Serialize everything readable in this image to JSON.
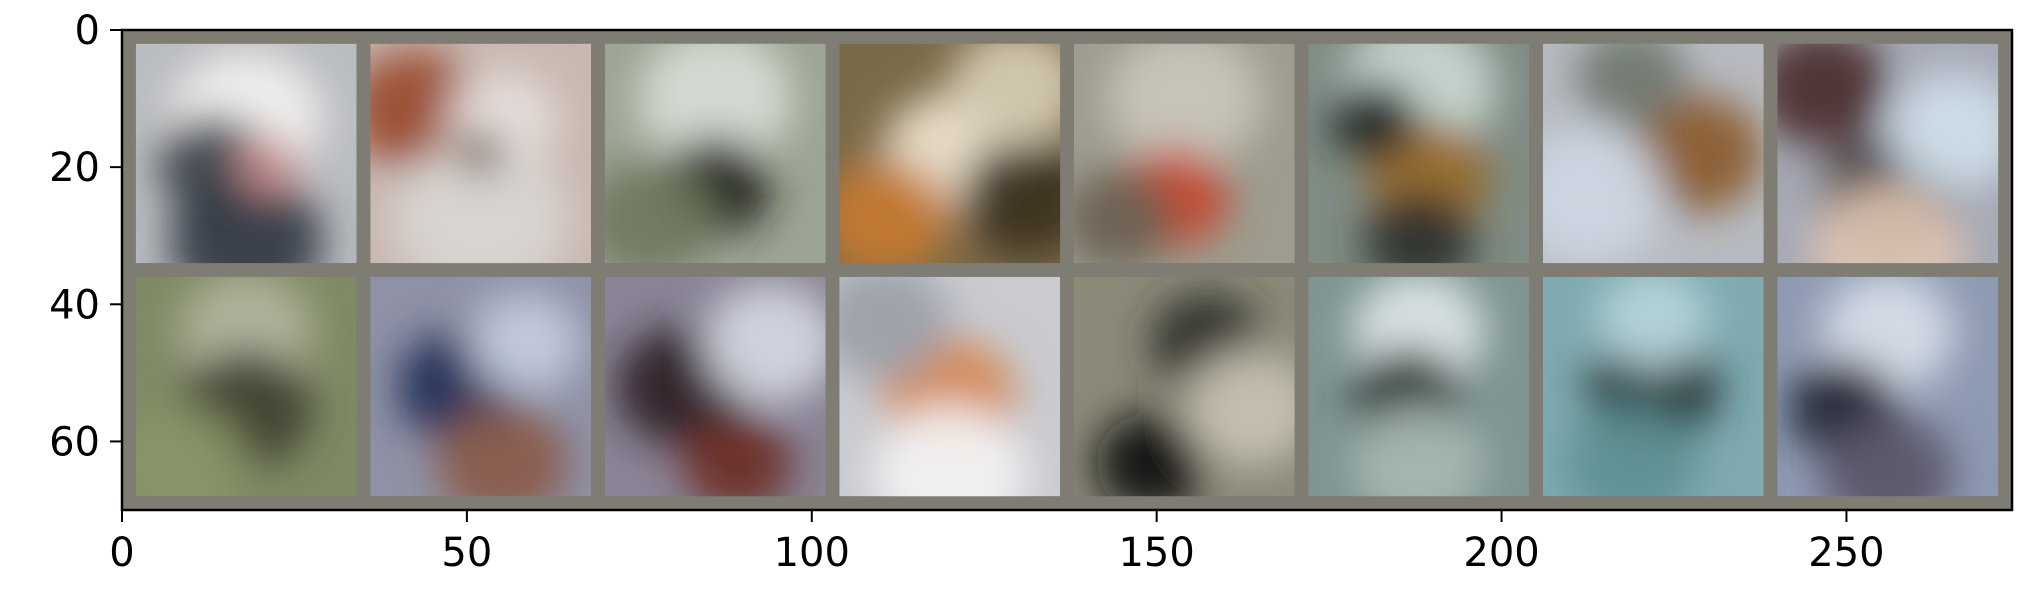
{
  "chart_data": {
    "type": "heatmap",
    "title": "",
    "xlabel": "",
    "ylabel": "",
    "xlim": [
      0,
      274
    ],
    "ylim": [
      70,
      0
    ],
    "x_ticks": [
      0,
      50,
      100,
      150,
      200,
      250
    ],
    "y_ticks": [
      0,
      20,
      40,
      60
    ],
    "x_tick_labels": [
      "0",
      "50",
      "100",
      "150",
      "200",
      "250"
    ],
    "y_tick_labels": [
      "0",
      "20",
      "40",
      "60"
    ],
    "grid": false,
    "legend": "none",
    "grid_layout": {
      "rows": 2,
      "cols": 8,
      "tile_px": 32,
      "padding_px": 2
    },
    "colors": {
      "border": "#7f7c73",
      "axis": "#000000"
    },
    "tiles": [
      {
        "row": 0,
        "col": 0,
        "base": "#b9bcc0",
        "blobs": [
          {
            "x": 0.5,
            "y": 0.35,
            "r": 0.35,
            "c": "#f3f2f1"
          },
          {
            "x": 0.35,
            "y": 0.55,
            "r": 0.25,
            "c": "#3a3f48"
          },
          {
            "x": 0.5,
            "y": 0.9,
            "r": 0.35,
            "c": "#2f3742"
          },
          {
            "x": 0.6,
            "y": 0.55,
            "r": 0.15,
            "c": "#c98e8e"
          }
        ]
      },
      {
        "row": 0,
        "col": 1,
        "base": "#c9b7b1",
        "blobs": [
          {
            "x": 0.2,
            "y": 0.3,
            "r": 0.3,
            "c": "#9a4a2e"
          },
          {
            "x": 0.6,
            "y": 0.35,
            "r": 0.25,
            "c": "#e6e0dc"
          },
          {
            "x": 0.5,
            "y": 0.8,
            "r": 0.4,
            "c": "#d9d6d3"
          },
          {
            "x": 0.5,
            "y": 0.5,
            "r": 0.1,
            "c": "#4a3326"
          }
        ]
      },
      {
        "row": 0,
        "col": 2,
        "base": "#9ca593",
        "blobs": [
          {
            "x": 0.5,
            "y": 0.25,
            "r": 0.35,
            "c": "#d8ddd6"
          },
          {
            "x": 0.5,
            "y": 0.65,
            "r": 0.25,
            "c": "#1c1f1a"
          },
          {
            "x": 0.2,
            "y": 0.8,
            "r": 0.3,
            "c": "#6f7a5e"
          }
        ]
      },
      {
        "row": 0,
        "col": 3,
        "base": "#7a6a48",
        "blobs": [
          {
            "x": 0.5,
            "y": 0.5,
            "r": 0.3,
            "c": "#f0e5d1"
          },
          {
            "x": 0.2,
            "y": 0.8,
            "r": 0.3,
            "c": "#c57a30"
          },
          {
            "x": 0.85,
            "y": 0.7,
            "r": 0.3,
            "c": "#3a2f1d"
          },
          {
            "x": 0.8,
            "y": 0.2,
            "r": 0.3,
            "c": "#d7cdb6"
          }
        ]
      },
      {
        "row": 0,
        "col": 4,
        "base": "#9d9c8e",
        "blobs": [
          {
            "x": 0.5,
            "y": 0.25,
            "r": 0.35,
            "c": "#c9c7bb"
          },
          {
            "x": 0.45,
            "y": 0.7,
            "r": 0.25,
            "c": "#c5452e"
          },
          {
            "x": 0.2,
            "y": 0.8,
            "r": 0.25,
            "c": "#6a6152"
          }
        ]
      },
      {
        "row": 0,
        "col": 5,
        "base": "#7f8c84",
        "blobs": [
          {
            "x": 0.5,
            "y": 0.2,
            "r": 0.35,
            "c": "#c9d9d3"
          },
          {
            "x": 0.55,
            "y": 0.6,
            "r": 0.28,
            "c": "#9a6b2a"
          },
          {
            "x": 0.3,
            "y": 0.35,
            "r": 0.2,
            "c": "#202322"
          },
          {
            "x": 0.5,
            "y": 0.9,
            "r": 0.25,
            "c": "#2c2f2c"
          }
        ]
      },
      {
        "row": 0,
        "col": 6,
        "base": "#b7bbc1",
        "blobs": [
          {
            "x": 0.7,
            "y": 0.5,
            "r": 0.3,
            "c": "#8a5a2e"
          },
          {
            "x": 0.2,
            "y": 0.7,
            "r": 0.35,
            "c": "#cdd6e3"
          },
          {
            "x": 0.4,
            "y": 0.15,
            "r": 0.25,
            "c": "#6f766e"
          }
        ]
      },
      {
        "row": 0,
        "col": 7,
        "base": "#a6a9b5",
        "blobs": [
          {
            "x": 0.2,
            "y": 0.2,
            "r": 0.3,
            "c": "#4a2c2c"
          },
          {
            "x": 0.5,
            "y": 0.7,
            "r": 0.3,
            "c": "#2a2426"
          },
          {
            "x": 0.8,
            "y": 0.4,
            "r": 0.3,
            "c": "#cfe0ea"
          },
          {
            "x": 0.5,
            "y": 0.95,
            "r": 0.35,
            "c": "#e0c6b3"
          }
        ]
      },
      {
        "row": 1,
        "col": 0,
        "base": "#7f8a64",
        "blobs": [
          {
            "x": 0.5,
            "y": 0.25,
            "r": 0.3,
            "c": "#b3b6a0"
          },
          {
            "x": 0.5,
            "y": 0.6,
            "r": 0.3,
            "c": "#3c3f30"
          },
          {
            "x": 0.2,
            "y": 0.85,
            "r": 0.3,
            "c": "#8a9668"
          }
        ]
      },
      {
        "row": 1,
        "col": 1,
        "base": "#8f92a6",
        "blobs": [
          {
            "x": 0.4,
            "y": 0.5,
            "r": 0.28,
            "c": "#1e2d56"
          },
          {
            "x": 0.7,
            "y": 0.3,
            "r": 0.25,
            "c": "#c6cde0"
          },
          {
            "x": 0.6,
            "y": 0.85,
            "r": 0.3,
            "c": "#8a5a4a"
          }
        ]
      },
      {
        "row": 1,
        "col": 2,
        "base": "#8a8496",
        "blobs": [
          {
            "x": 0.35,
            "y": 0.5,
            "r": 0.3,
            "c": "#2a1e24"
          },
          {
            "x": 0.75,
            "y": 0.3,
            "r": 0.3,
            "c": "#d5d9e3"
          },
          {
            "x": 0.6,
            "y": 0.85,
            "r": 0.25,
            "c": "#6b2e24"
          }
        ]
      },
      {
        "row": 1,
        "col": 3,
        "base": "#c9cbd0",
        "blobs": [
          {
            "x": 0.5,
            "y": 0.55,
            "r": 0.3,
            "c": "#d6864e"
          },
          {
            "x": 0.5,
            "y": 0.9,
            "r": 0.35,
            "c": "#f3f3f4"
          },
          {
            "x": 0.2,
            "y": 0.2,
            "r": 0.3,
            "c": "#9aa0a8"
          }
        ]
      },
      {
        "row": 1,
        "col": 4,
        "base": "#8b8978",
        "blobs": [
          {
            "x": 0.6,
            "y": 0.3,
            "r": 0.25,
            "c": "#2a2a26"
          },
          {
            "x": 0.35,
            "y": 0.85,
            "r": 0.25,
            "c": "#111110"
          },
          {
            "x": 0.8,
            "y": 0.6,
            "r": 0.3,
            "c": "#c8c2b2"
          }
        ]
      },
      {
        "row": 1,
        "col": 5,
        "base": "#7e9592",
        "blobs": [
          {
            "x": 0.5,
            "y": 0.25,
            "r": 0.3,
            "c": "#dfe7e8"
          },
          {
            "x": 0.45,
            "y": 0.55,
            "r": 0.25,
            "c": "#1f2c2b"
          },
          {
            "x": 0.5,
            "y": 0.85,
            "r": 0.3,
            "c": "#a8b8b4"
          }
        ]
      },
      {
        "row": 1,
        "col": 6,
        "base": "#7eaab0",
        "blobs": [
          {
            "x": 0.5,
            "y": 0.5,
            "r": 0.3,
            "c": "#24312f"
          },
          {
            "x": 0.5,
            "y": 0.2,
            "r": 0.25,
            "c": "#b8d7dc"
          },
          {
            "x": 0.4,
            "y": 0.85,
            "r": 0.3,
            "c": "#5d8f93"
          }
        ]
      },
      {
        "row": 1,
        "col": 7,
        "base": "#8e9ab2",
        "blobs": [
          {
            "x": 0.5,
            "y": 0.25,
            "r": 0.3,
            "c": "#d9dfe9"
          },
          {
            "x": 0.3,
            "y": 0.6,
            "r": 0.25,
            "c": "#1f2230"
          },
          {
            "x": 0.5,
            "y": 0.9,
            "r": 0.3,
            "c": "#5a5568"
          }
        ]
      }
    ]
  }
}
